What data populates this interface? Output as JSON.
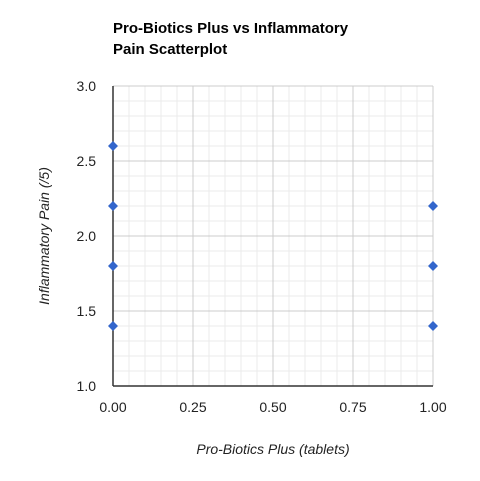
{
  "chart_data": {
    "type": "scatter",
    "title_lines": [
      "Pro-Biotics Plus vs Inflammatory",
      "Pain Scatterplot"
    ],
    "xlabel": "Pro-Biotics Plus (tablets)",
    "ylabel": "Inflammatory Pain (/5)",
    "xlim": [
      0,
      1
    ],
    "ylim": [
      1,
      3
    ],
    "x_ticks": [
      "0.00",
      "0.25",
      "0.50",
      "0.75",
      "1.00"
    ],
    "y_ticks": [
      "1.0",
      "1.5",
      "2.0",
      "2.5",
      "3.0"
    ],
    "grid": true,
    "legend": "none",
    "colors": {
      "point": "#3366cc",
      "grid_major": "#cccccc",
      "grid_minor": "#ebebeb",
      "axis": "#333333"
    },
    "points": [
      {
        "x": 0,
        "y": 2.6
      },
      {
        "x": 0,
        "y": 2.2
      },
      {
        "x": 0,
        "y": 1.8
      },
      {
        "x": 0,
        "y": 1.4
      },
      {
        "x": 1,
        "y": 2.2
      },
      {
        "x": 1,
        "y": 1.8
      },
      {
        "x": 1,
        "y": 1.4
      }
    ]
  }
}
